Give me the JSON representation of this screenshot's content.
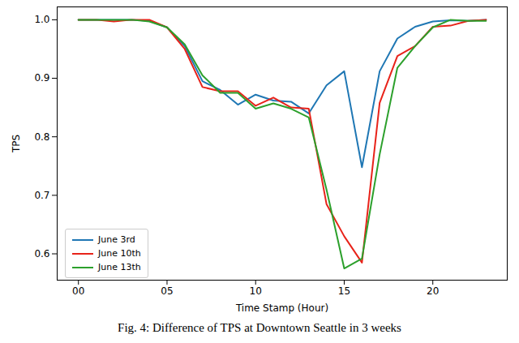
{
  "chart_data": {
    "type": "line",
    "caption": "Fig. 4: Difference of TPS at Downtown Seattle in 3 weeks",
    "x_label": "Time Stamp (Hour)",
    "y_label": "TPS",
    "x": [
      0,
      1,
      2,
      3,
      4,
      5,
      6,
      7,
      8,
      9,
      10,
      11,
      12,
      13,
      14,
      15,
      16,
      17,
      18,
      19,
      20,
      21,
      22,
      23
    ],
    "series": [
      {
        "name": "June 3rd",
        "color": "#1f77b4",
        "values": [
          1.0,
          1.0,
          1.0,
          1.0,
          0.998,
          0.987,
          0.955,
          0.895,
          0.88,
          0.855,
          0.872,
          0.862,
          0.86,
          0.84,
          0.888,
          0.912,
          0.748,
          0.912,
          0.968,
          0.988,
          0.997,
          0.999,
          0.998,
          1.0
        ]
      },
      {
        "name": "June 10th",
        "color": "#e8231a",
        "values": [
          1.0,
          1.0,
          0.997,
          1.0,
          1.0,
          0.987,
          0.95,
          0.885,
          0.878,
          0.878,
          0.853,
          0.867,
          0.85,
          0.848,
          0.685,
          0.63,
          0.585,
          0.858,
          0.938,
          0.955,
          0.988,
          0.99,
          0.998,
          1.0
        ]
      },
      {
        "name": "June 13th",
        "color": "#2ca02c",
        "values": [
          1.0,
          1.0,
          1.0,
          1.0,
          0.997,
          0.987,
          0.958,
          0.905,
          0.875,
          0.875,
          0.848,
          0.857,
          0.848,
          0.833,
          0.71,
          0.575,
          0.592,
          0.77,
          0.918,
          0.955,
          0.987,
          1.0,
          0.998,
          0.998
        ]
      }
    ],
    "xlim": [
      -1.2,
      24.2
    ],
    "xticks": [
      {
        "value": 0,
        "label": "00"
      },
      {
        "value": 5,
        "label": "05"
      },
      10,
      15,
      20
    ],
    "ylim": [
      0.555,
      1.022
    ],
    "yticks": [
      0.6,
      0.7,
      0.8,
      0.9,
      {
        "value": 1,
        "label": "1.0"
      }
    ],
    "grid": false,
    "legend": "lower left"
  }
}
